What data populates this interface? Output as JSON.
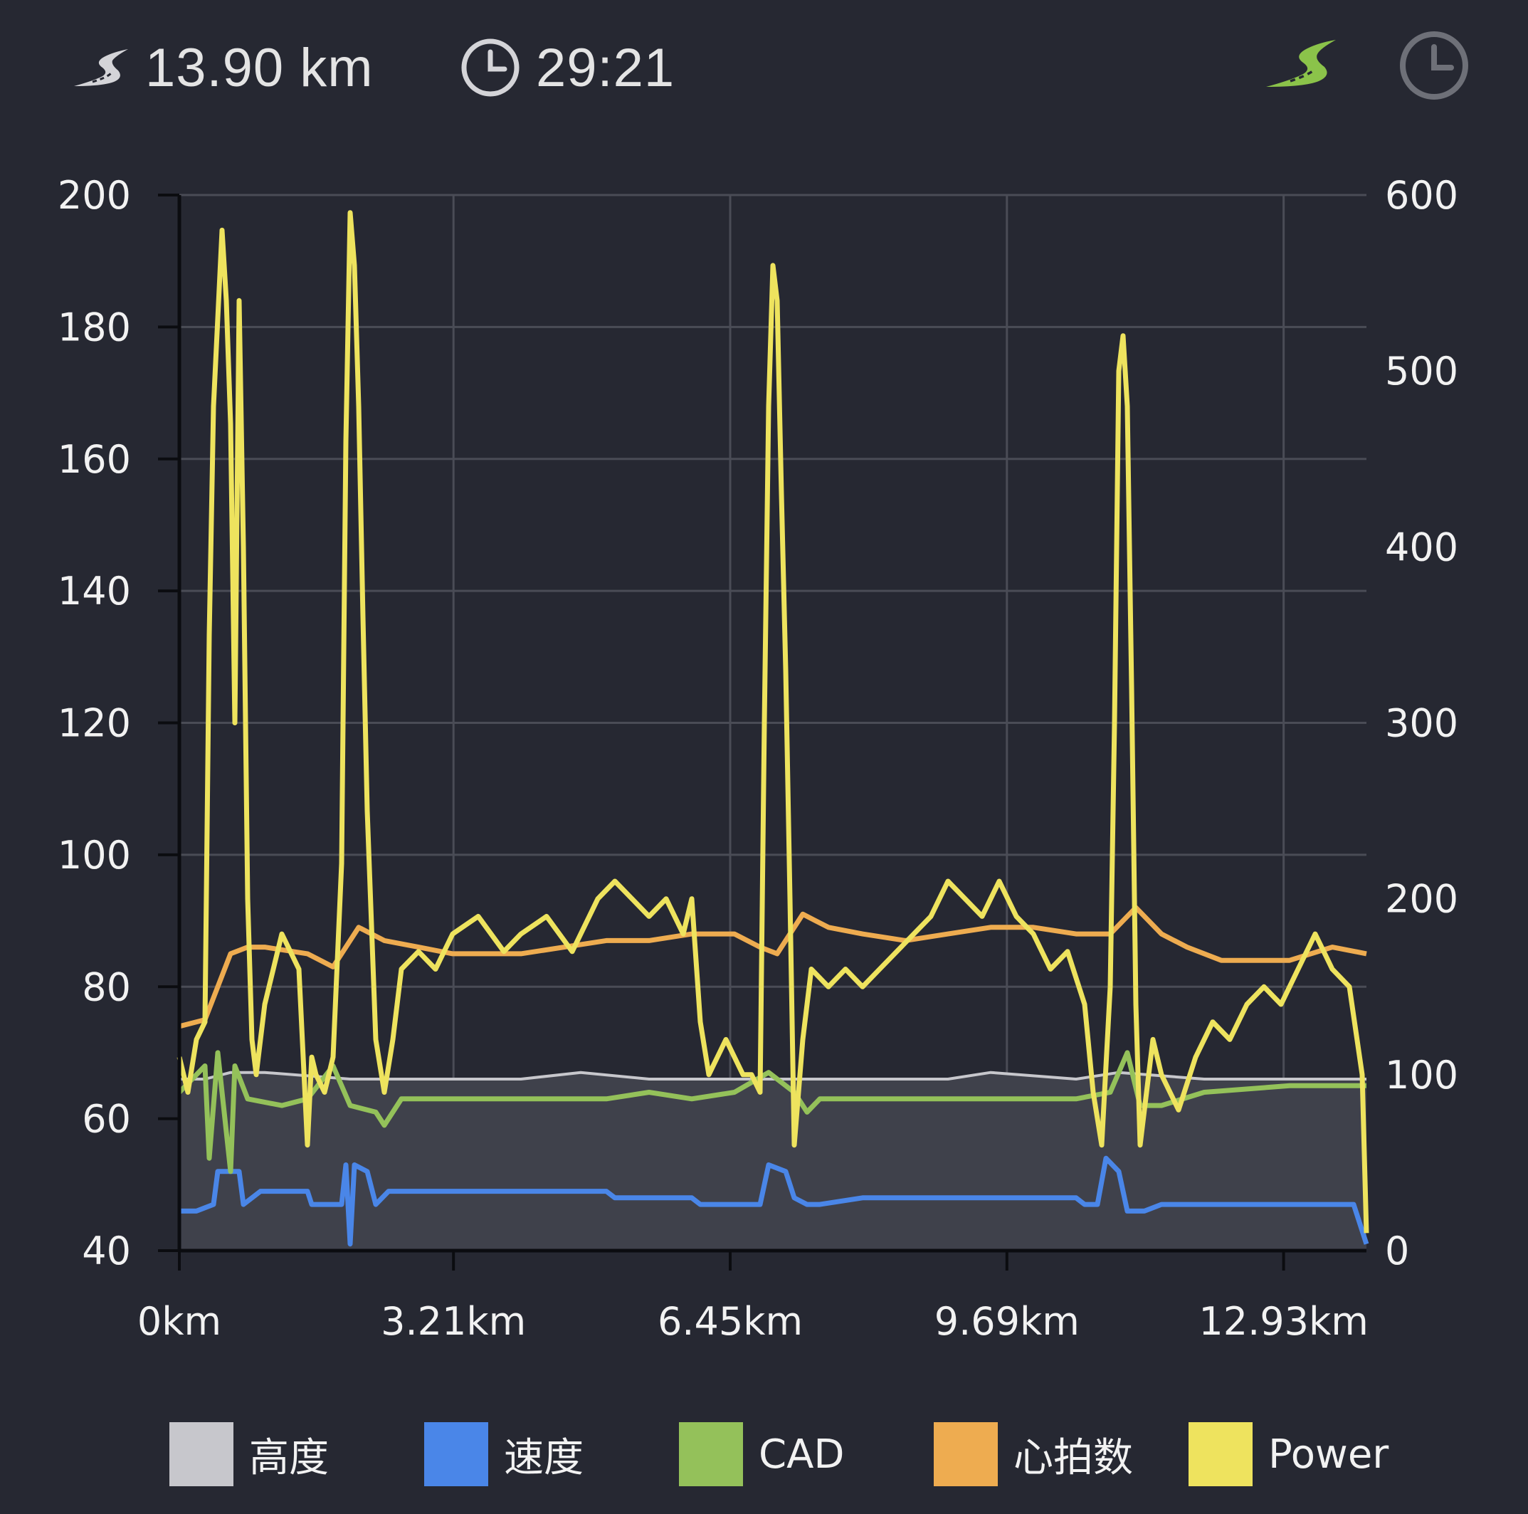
{
  "header": {
    "distance": "13.90 km",
    "time": "29:21",
    "icons": [
      "road-icon",
      "clock-icon",
      "road-icon-active",
      "clock-icon-toggle"
    ]
  },
  "colors": {
    "background": "#262832",
    "grid": "#4a4c56",
    "altitude": "#c7c7cc",
    "speed": "#4a86e8",
    "cadence": "#94c15a",
    "heart_rate": "#eeac50",
    "power": "#eee35e",
    "active_icon": "#8bc34a",
    "inactive_icon": "#6e7078"
  },
  "legend": [
    {
      "label": "高度",
      "color": "#c7c7cc"
    },
    {
      "label": "速度",
      "color": "#4a86e8"
    },
    {
      "label": "CAD",
      "color": "#94c15a"
    },
    {
      "label": "心拍数",
      "color": "#eeac50"
    },
    {
      "label": "Power",
      "color": "#eee35e"
    }
  ],
  "chart_data": {
    "type": "line",
    "x_ticks": [
      "0km",
      "3.21km",
      "6.45km",
      "9.69km",
      "12.93km"
    ],
    "x_tick_values": [
      0,
      3.21,
      6.45,
      9.69,
      12.93
    ],
    "xlim": [
      0,
      13.9
    ],
    "y_left_ticks": [
      "40",
      "60",
      "80",
      "100",
      "120",
      "140",
      "160",
      "180",
      "200"
    ],
    "ylim_left": [
      40,
      200
    ],
    "y_right_ticks": [
      "0",
      "100",
      "200",
      "300",
      "400",
      "500",
      "600"
    ],
    "ylim_right": [
      0,
      600
    ],
    "grid": true,
    "legend_position": "bottom",
    "series": [
      {
        "name": "高度",
        "axis": "left",
        "area": true,
        "x": [
          0,
          0.3,
          0.6,
          1.0,
          2.0,
          3.0,
          4.0,
          4.7,
          5.5,
          6.3,
          7.0,
          8.0,
          9.0,
          9.5,
          10.5,
          11.0,
          12.0,
          12.5,
          13.0,
          13.9
        ],
        "values": [
          66,
          66,
          67,
          67,
          66,
          66,
          66,
          67,
          66,
          66,
          66,
          66,
          66,
          67,
          66,
          67,
          66,
          66,
          66,
          66
        ]
      },
      {
        "name": "速度",
        "axis": "left",
        "x": [
          0,
          0.2,
          0.4,
          0.45,
          0.7,
          0.75,
          0.95,
          1.5,
          1.55,
          1.9,
          1.95,
          2.0,
          2.05,
          2.2,
          2.3,
          2.45,
          2.6,
          3.0,
          4.0,
          5.0,
          5.1,
          6.0,
          6.1,
          6.5,
          6.8,
          6.9,
          7.1,
          7.2,
          7.35,
          7.5,
          8.0,
          9.0,
          10.0,
          10.5,
          10.6,
          10.75,
          10.85,
          11.0,
          11.1,
          11.3,
          11.5,
          12.0,
          13.0,
          13.5,
          13.75,
          13.9
        ],
        "values": [
          46,
          46,
          47,
          52,
          52,
          47,
          49,
          49,
          47,
          47,
          53,
          41,
          53,
          52,
          47,
          49,
          49,
          49,
          49,
          49,
          48,
          48,
          47,
          47,
          47,
          53,
          52,
          48,
          47,
          47,
          48,
          48,
          48,
          48,
          47,
          47,
          54,
          52,
          46,
          46,
          47,
          47,
          47,
          47,
          47,
          41
        ]
      },
      {
        "name": "CAD",
        "axis": "left",
        "x": [
          0,
          0.3,
          0.35,
          0.45,
          0.6,
          0.65,
          0.8,
          1.2,
          1.5,
          1.8,
          2.0,
          2.3,
          2.4,
          2.6,
          3.0,
          4.0,
          5.0,
          5.5,
          6.0,
          6.5,
          6.9,
          7.2,
          7.35,
          7.5,
          8.0,
          9.0,
          10.0,
          10.5,
          10.9,
          11.1,
          11.25,
          11.5,
          12.0,
          13.0,
          13.5,
          13.9
        ],
        "values": [
          64,
          68,
          54,
          70,
          52,
          68,
          63,
          62,
          63,
          68,
          62,
          61,
          59,
          63,
          63,
          63,
          63,
          64,
          63,
          64,
          67,
          64,
          61,
          63,
          63,
          63,
          63,
          63,
          64,
          70,
          62,
          62,
          64,
          65,
          65,
          65
        ]
      },
      {
        "name": "心拍数",
        "axis": "left",
        "x": [
          0,
          0.3,
          0.6,
          0.8,
          1.0,
          1.5,
          1.8,
          2.1,
          2.4,
          2.8,
          3.2,
          4.0,
          5.0,
          5.5,
          6.0,
          6.5,
          6.8,
          7.0,
          7.3,
          7.6,
          8.0,
          8.5,
          9.0,
          9.5,
          10.0,
          10.5,
          10.9,
          11.2,
          11.5,
          11.8,
          12.2,
          12.6,
          13.0,
          13.5,
          13.9
        ],
        "values": [
          74,
          75,
          85,
          86,
          86,
          85,
          83,
          89,
          87,
          86,
          85,
          85,
          87,
          87,
          88,
          88,
          86,
          85,
          91,
          89,
          88,
          87,
          88,
          89,
          89,
          88,
          88,
          92,
          88,
          86,
          84,
          84,
          84,
          86,
          85
        ]
      },
      {
        "name": "Power",
        "axis": "right",
        "x": [
          0,
          0.1,
          0.2,
          0.3,
          0.35,
          0.4,
          0.45,
          0.5,
          0.55,
          0.6,
          0.65,
          0.7,
          0.75,
          0.8,
          0.85,
          0.9,
          1.0,
          1.2,
          1.4,
          1.5,
          1.55,
          1.6,
          1.7,
          1.8,
          1.9,
          1.95,
          2.0,
          2.05,
          2.1,
          2.15,
          2.2,
          2.3,
          2.4,
          2.5,
          2.6,
          2.8,
          3.0,
          3.2,
          3.5,
          3.8,
          4.0,
          4.3,
          4.6,
          4.9,
          5.1,
          5.3,
          5.5,
          5.7,
          5.9,
          6.0,
          6.1,
          6.2,
          6.3,
          6.4,
          6.5,
          6.6,
          6.7,
          6.8,
          6.85,
          6.9,
          6.95,
          7.0,
          7.05,
          7.1,
          7.15,
          7.2,
          7.3,
          7.4,
          7.6,
          7.8,
          8.0,
          8.2,
          8.4,
          8.6,
          8.8,
          9.0,
          9.2,
          9.4,
          9.6,
          9.8,
          10.0,
          10.2,
          10.4,
          10.6,
          10.7,
          10.8,
          10.9,
          10.95,
          11.0,
          11.05,
          11.1,
          11.15,
          11.2,
          11.25,
          11.3,
          11.4,
          11.5,
          11.7,
          11.9,
          12.1,
          12.3,
          12.5,
          12.7,
          12.9,
          13.1,
          13.3,
          13.5,
          13.7,
          13.85,
          13.9
        ],
        "values": [
          110,
          90,
          120,
          130,
          350,
          480,
          530,
          580,
          540,
          470,
          300,
          540,
          400,
          200,
          120,
          100,
          140,
          180,
          160,
          60,
          110,
          100,
          90,
          110,
          220,
          460,
          590,
          560,
          480,
          360,
          250,
          120,
          90,
          120,
          160,
          170,
          160,
          180,
          190,
          170,
          180,
          190,
          170,
          200,
          210,
          200,
          190,
          200,
          180,
          200,
          130,
          100,
          110,
          120,
          110,
          100,
          100,
          90,
          300,
          480,
          560,
          540,
          430,
          330,
          200,
          60,
          120,
          160,
          150,
          160,
          150,
          160,
          170,
          180,
          190,
          210,
          200,
          190,
          210,
          190,
          180,
          160,
          170,
          140,
          90,
          60,
          150,
          300,
          500,
          520,
          480,
          320,
          140,
          60,
          80,
          120,
          100,
          80,
          110,
          130,
          120,
          140,
          150,
          140,
          160,
          180,
          160,
          150,
          100,
          10
        ]
      }
    ]
  }
}
